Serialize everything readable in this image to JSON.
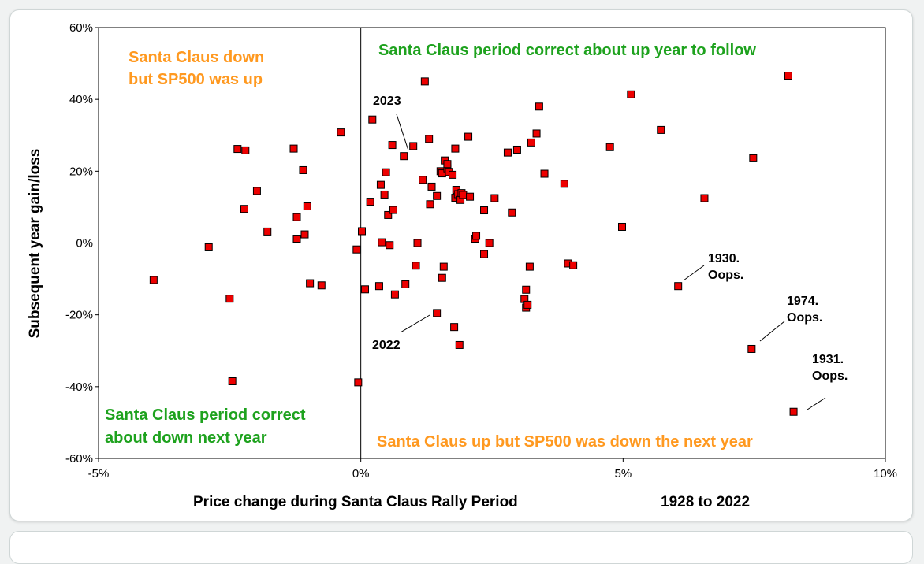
{
  "chart_data": {
    "type": "scatter",
    "title": "",
    "xlabel": "Price change during Santa Claus Rally Period",
    "xlabel_suffix": "1928 to 2022",
    "ylabel": "Subsequent year gain/loss",
    "xlim": [
      -5,
      10
    ],
    "ylim": [
      -60,
      60
    ],
    "x_ticks": [
      -5,
      0,
      5,
      10
    ],
    "y_ticks": [
      60,
      40,
      20,
      0,
      -20,
      -40,
      -60
    ],
    "x_tick_labels": [
      "-5%",
      "0%",
      "5%",
      "10%"
    ],
    "y_tick_labels": [
      "60%",
      "40%",
      "20%",
      "0%",
      "-20%",
      "-40%",
      "-60%"
    ],
    "marker_color": "#ee0000",
    "quadrant_labels": {
      "top_left": [
        "Santa Claus down",
        "but SP500 was up"
      ],
      "top_right": "Santa Claus period correct about up year to follow",
      "bottom_left": [
        "Santa Claus period correct",
        "about down next year"
      ],
      "bottom_right": "Santa Claus up but SP500 was down the next year"
    },
    "quadrant_colors": {
      "correct": "#1ea21e",
      "wrong": "#ff9920"
    },
    "annotations": [
      {
        "id": "2023",
        "lines": [
          "2023"
        ],
        "x": 0.85,
        "y": 24
      },
      {
        "id": "2022",
        "lines": [
          "2022"
        ],
        "x": 1.45,
        "y": -19.5
      },
      {
        "id": "1930",
        "lines": [
          "1930.",
          "Oops."
        ],
        "x": 6.05,
        "y": -12
      },
      {
        "id": "1974",
        "lines": [
          "1974.",
          "Oops."
        ],
        "x": 7.45,
        "y": -29.5
      },
      {
        "id": "1931",
        "lines": [
          "1931.",
          "Oops."
        ],
        "x": 8.25,
        "y": -47
      }
    ],
    "series": [
      {
        "name": "Years 1928-2022",
        "points": [
          [
            -3.95,
            -10.3
          ],
          [
            -2.9,
            -1.2
          ],
          [
            -2.5,
            -15.5
          ],
          [
            -2.45,
            -38.5
          ],
          [
            -2.35,
            26.2
          ],
          [
            -2.22,
            9.5
          ],
          [
            -2.2,
            25.8
          ],
          [
            -1.98,
            14.5
          ],
          [
            -1.78,
            3.2
          ],
          [
            -1.28,
            26.3
          ],
          [
            -1.22,
            7.2
          ],
          [
            -1.22,
            1.2
          ],
          [
            -1.1,
            20.3
          ],
          [
            -1.07,
            2.4
          ],
          [
            -1.02,
            10.2
          ],
          [
            -0.97,
            -11.2
          ],
          [
            -0.75,
            -11.8
          ],
          [
            -0.38,
            30.8
          ],
          [
            -0.08,
            -1.8
          ],
          [
            -0.05,
            -38.8
          ],
          [
            0.02,
            3.3
          ],
          [
            0.08,
            -12.9
          ],
          [
            0.18,
            11.5
          ],
          [
            0.22,
            34.4
          ],
          [
            0.35,
            -12.0
          ],
          [
            0.38,
            16.2
          ],
          [
            0.4,
            0.2
          ],
          [
            0.45,
            13.5
          ],
          [
            0.48,
            19.7
          ],
          [
            0.52,
            7.8
          ],
          [
            0.55,
            -0.6
          ],
          [
            0.6,
            27.3
          ],
          [
            0.62,
            9.2
          ],
          [
            0.65,
            -14.3
          ],
          [
            0.82,
            24.2
          ],
          [
            0.85,
            -11.5
          ],
          [
            1.0,
            27.0
          ],
          [
            1.05,
            -6.3
          ],
          [
            1.08,
            0.0
          ],
          [
            1.18,
            17.6
          ],
          [
            1.22,
            45.0
          ],
          [
            1.3,
            29.0
          ],
          [
            1.32,
            10.8
          ],
          [
            1.35,
            15.7
          ],
          [
            1.45,
            13.1
          ],
          [
            1.45,
            -19.5
          ],
          [
            1.52,
            20.0
          ],
          [
            1.55,
            19.4
          ],
          [
            1.55,
            -9.7
          ],
          [
            1.58,
            -6.6
          ],
          [
            1.6,
            23.0
          ],
          [
            1.65,
            20.8
          ],
          [
            1.65,
            22.0
          ],
          [
            1.68,
            19.8
          ],
          [
            1.75,
            19.0
          ],
          [
            1.78,
            -23.4
          ],
          [
            1.8,
            12.6
          ],
          [
            1.8,
            26.3
          ],
          [
            1.82,
            14.8
          ],
          [
            1.85,
            13.6
          ],
          [
            1.88,
            -28.4
          ],
          [
            1.9,
            12.0
          ],
          [
            1.92,
            13.9
          ],
          [
            1.95,
            13.4
          ],
          [
            2.05,
            29.6
          ],
          [
            2.08,
            12.9
          ],
          [
            2.18,
            1.2
          ],
          [
            2.2,
            2.0
          ],
          [
            2.35,
            9.1
          ],
          [
            2.35,
            -3.1
          ],
          [
            2.45,
            0.0
          ],
          [
            2.55,
            12.5
          ],
          [
            2.8,
            25.2
          ],
          [
            2.88,
            8.5
          ],
          [
            2.98,
            26.0
          ],
          [
            3.12,
            -15.6
          ],
          [
            3.15,
            -18.0
          ],
          [
            3.15,
            -13.0
          ],
          [
            3.18,
            -17.2
          ],
          [
            3.22,
            -6.6
          ],
          [
            3.25,
            28.0
          ],
          [
            3.35,
            30.5
          ],
          [
            3.4,
            38.0
          ],
          [
            3.5,
            19.3
          ],
          [
            3.88,
            16.5
          ],
          [
            3.95,
            -5.7
          ],
          [
            4.05,
            -6.2
          ],
          [
            4.75,
            26.7
          ],
          [
            4.98,
            4.5
          ],
          [
            5.15,
            41.4
          ],
          [
            5.72,
            31.5
          ],
          [
            6.05,
            -12.0
          ],
          [
            6.55,
            12.5
          ],
          [
            7.45,
            -29.5
          ],
          [
            7.48,
            23.6
          ],
          [
            8.15,
            46.6
          ],
          [
            8.25,
            -47.0
          ]
        ]
      }
    ]
  }
}
